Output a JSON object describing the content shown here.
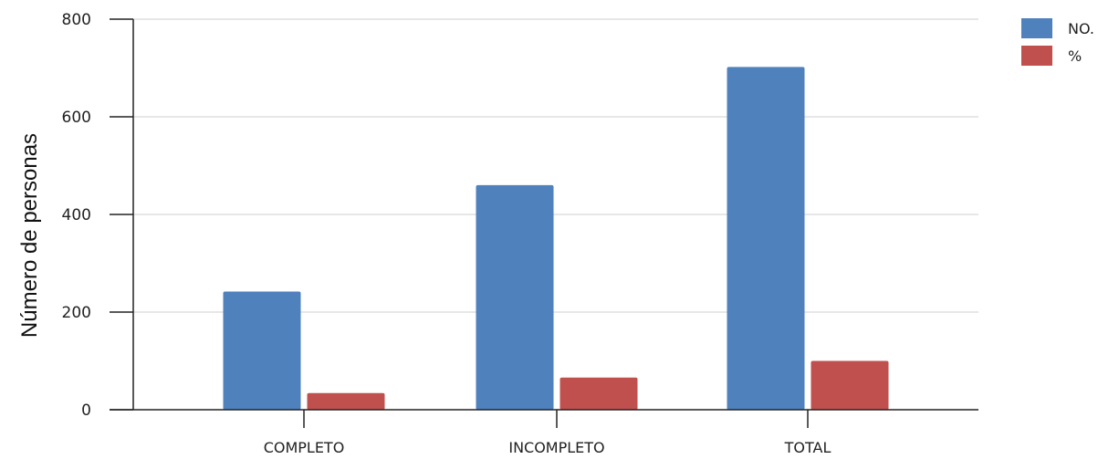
{
  "chart_data": {
    "type": "bar",
    "categories": [
      "COMPLETO",
      "INCOMPLETO",
      "TOTAL"
    ],
    "series": [
      {
        "name": "NO.",
        "values": [
          242,
          460,
          702
        ],
        "color": "#4f81bd"
      },
      {
        "name": "%",
        "values": [
          34,
          66,
          100
        ],
        "color": "#c0504d"
      }
    ],
    "ylabel": "Número de personas",
    "xlabel": "",
    "ylim": [
      0,
      800
    ],
    "yticks": [
      0,
      200,
      400,
      600,
      800
    ],
    "grid": true,
    "legend_position": "top-right"
  }
}
